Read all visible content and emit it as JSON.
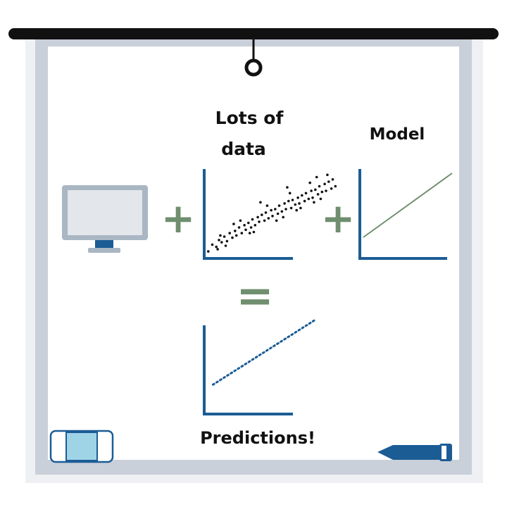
{
  "labels": {
    "data_title_line1": "Lots of",
    "data_title_line2": "data",
    "model_title": "Model",
    "predictions_title": "Predictions!"
  },
  "operators": {
    "plus_1": "+",
    "plus_2": "+",
    "equals": "="
  },
  "colors": {
    "board_frame": "#c9d0d9",
    "board_surface": "#ffffff",
    "rail": "#111111",
    "axis_blue": "#1b5c95",
    "operator_green": "#6f8f6f",
    "monitor_bezel": "#a9b6c4",
    "monitor_screen": "#e3e6ea",
    "monitor_stand": "#1b5c95",
    "eraser_fill": "#9fd3e6",
    "marker_blue": "#1b5c95"
  },
  "icons": {
    "computer": "monitor-icon",
    "eraser": "eraser-icon",
    "marker": "marker-icon"
  },
  "chart_data": [
    {
      "type": "scatter",
      "points": [
        [
          0.2,
          0.3
        ],
        [
          0.5,
          0.9
        ],
        [
          0.8,
          0.7
        ],
        [
          1.0,
          1.3
        ],
        [
          1.2,
          1.1
        ],
        [
          1.4,
          1.6
        ],
        [
          1.6,
          1.2
        ],
        [
          1.8,
          1.9
        ],
        [
          2.0,
          1.5
        ],
        [
          2.2,
          2.1
        ],
        [
          2.3,
          1.7
        ],
        [
          2.5,
          2.4
        ],
        [
          2.7,
          1.9
        ],
        [
          2.9,
          2.6
        ],
        [
          3.0,
          2.2
        ],
        [
          3.2,
          2.8
        ],
        [
          3.4,
          2.4
        ],
        [
          3.5,
          3.1
        ],
        [
          3.7,
          2.6
        ],
        [
          3.9,
          3.3
        ],
        [
          4.0,
          2.9
        ],
        [
          4.2,
          3.5
        ],
        [
          4.4,
          3.0
        ],
        [
          4.5,
          3.7
        ],
        [
          4.7,
          3.2
        ],
        [
          4.9,
          3.9
        ],
        [
          5.0,
          3.4
        ],
        [
          5.2,
          4.0
        ],
        [
          5.4,
          3.6
        ],
        [
          5.5,
          4.3
        ],
        [
          5.7,
          3.8
        ],
        [
          5.9,
          4.5
        ],
        [
          6.0,
          4.0
        ],
        [
          6.2,
          4.7
        ],
        [
          6.4,
          4.1
        ],
        [
          6.5,
          4.8
        ],
        [
          6.7,
          4.4
        ],
        [
          6.9,
          5.0
        ],
        [
          7.0,
          4.5
        ],
        [
          7.2,
          5.2
        ],
        [
          7.4,
          4.7
        ],
        [
          7.5,
          5.4
        ],
        [
          7.7,
          4.9
        ],
        [
          7.9,
          5.6
        ],
        [
          8.0,
          5.0
        ],
        [
          8.2,
          5.7
        ],
        [
          8.4,
          5.3
        ],
        [
          8.5,
          6.0
        ],
        [
          8.7,
          5.5
        ],
        [
          8.9,
          6.2
        ],
        [
          9.0,
          5.6
        ],
        [
          9.2,
          6.4
        ],
        [
          9.4,
          5.8
        ],
        [
          9.5,
          6.6
        ],
        [
          9.7,
          6.0
        ],
        [
          1.5,
          0.8
        ],
        [
          3.3,
          1.9
        ],
        [
          5.3,
          3.0
        ],
        [
          6.8,
          3.9
        ],
        [
          8.1,
          4.6
        ],
        [
          2.6,
          3.0
        ],
        [
          4.6,
          4.3
        ],
        [
          6.3,
          5.4
        ],
        [
          7.8,
          6.3
        ],
        [
          9.1,
          7.0
        ],
        [
          0.9,
          0.5
        ],
        [
          3.6,
          2.0
        ],
        [
          5.8,
          3.3
        ],
        [
          7.1,
          4.1
        ],
        [
          8.6,
          4.9
        ],
        [
          1.1,
          1.7
        ],
        [
          2.1,
          2.7
        ],
        [
          4.1,
          4.6
        ],
        [
          6.1,
          5.9
        ],
        [
          8.3,
          6.8
        ]
      ],
      "xlim": [
        0,
        10
      ],
      "ylim": [
        0,
        8
      ]
    },
    {
      "type": "line",
      "series": [
        {
          "x": [
            0.3,
            10
          ],
          "y": [
            0.8,
            6.4
          ]
        }
      ],
      "xlim": [
        0,
        10
      ],
      "ylim": [
        0,
        8
      ]
    },
    {
      "type": "line",
      "series": [
        {
          "x": [
            0.3,
            10
          ],
          "y": [
            0.6,
            6.2
          ],
          "dotted": true
        }
      ],
      "xlim": [
        0,
        10
      ],
      "ylim": [
        0,
        8
      ]
    }
  ]
}
